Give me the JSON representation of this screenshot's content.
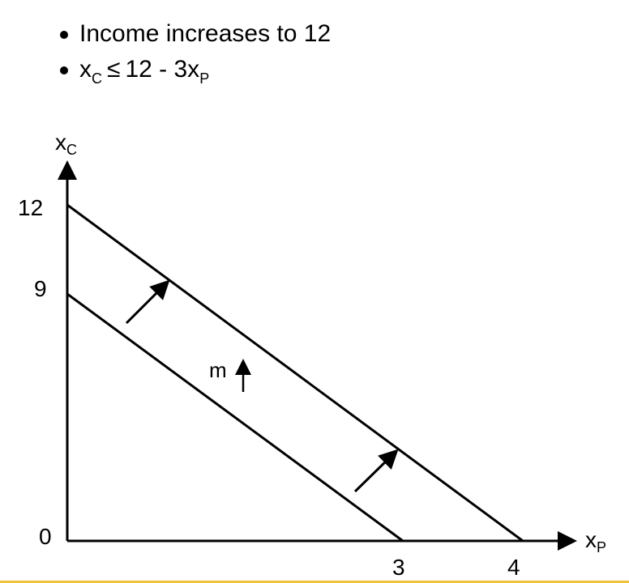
{
  "bullets": {
    "item1": "Income increases to 12",
    "item2": {
      "lhs_var": "x",
      "lhs_sub": "C",
      "relation": "≤",
      "rhs_prefix": "12 - 3x",
      "rhs_sub": "P"
    }
  },
  "diagram": {
    "y_axis_label": {
      "var": "x",
      "sub": "C"
    },
    "x_axis_label": {
      "var": "x",
      "sub": "P"
    },
    "y_ticks": [
      "12",
      "9",
      "0"
    ],
    "x_ticks": [
      "3",
      "4"
    ],
    "annotation": "m",
    "lines": [
      {
        "name": "original-budget-line",
        "y_intercept": 9,
        "x_intercept": 3
      },
      {
        "name": "new-budget-line",
        "y_intercept": 12,
        "x_intercept": 4
      }
    ],
    "shift_arrows": 2,
    "colors": {
      "line": "#000000",
      "bottom_rule": "#f0c040"
    }
  }
}
